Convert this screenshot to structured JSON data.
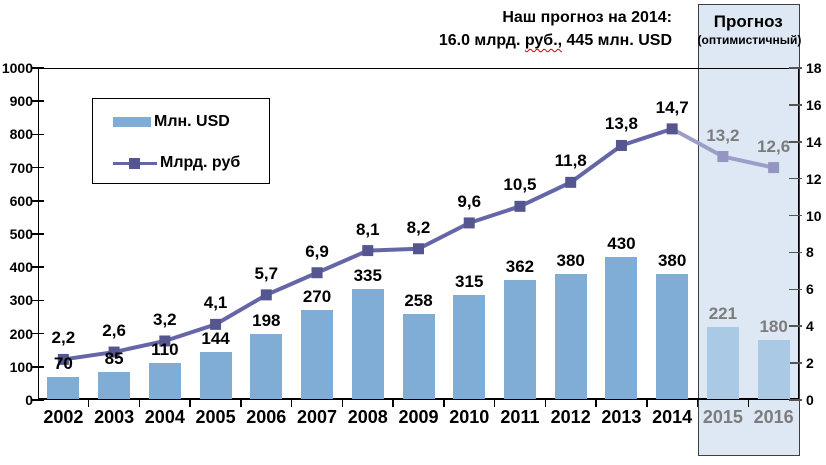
{
  "title": {
    "line1": "Наш прогноз на 2014:",
    "line2_prefix": "16.0 млрд. ",
    "line2_misspelled": "руб.,",
    "line2_suffix": " 445 млн. USD"
  },
  "forecast_box": {
    "title": "Прогноз",
    "subtitle": "(оптимистичный)"
  },
  "legend": {
    "bar_label": "Млн. USD",
    "line_label": "Млрд. руб"
  },
  "chart_data": {
    "type": "bar+line",
    "categories": [
      "2002",
      "2003",
      "2004",
      "2005",
      "2006",
      "2007",
      "2008",
      "2009",
      "2010",
      "2011",
      "2012",
      "2013",
      "2014",
      "2015",
      "2016"
    ],
    "series": [
      {
        "name": "Млн. USD",
        "type": "bar",
        "axis": "left",
        "values": [
          70,
          85,
          110,
          144,
          198,
          270,
          335,
          258,
          315,
          362,
          380,
          430,
          380,
          221,
          180
        ],
        "labels": [
          "70",
          "85",
          "110",
          "144",
          "198",
          "270",
          "335",
          "258",
          "315",
          "362",
          "380",
          "430",
          "380",
          "221",
          "180"
        ]
      },
      {
        "name": "Млрд. руб",
        "type": "line",
        "axis": "right",
        "values": [
          2.2,
          2.6,
          3.2,
          4.1,
          5.7,
          6.9,
          8.1,
          8.2,
          9.6,
          10.5,
          11.8,
          13.8,
          14.7,
          13.2,
          12.6
        ],
        "labels": [
          "2,2",
          "2,6",
          "3,2",
          "4,1",
          "5,7",
          "6,9",
          "8,1",
          "8,2",
          "9,6",
          "10,5",
          "11,8",
          "13,8",
          "14,7",
          "13,2",
          "12,6"
        ]
      }
    ],
    "left_axis": {
      "min": 0,
      "max": 1000,
      "step": 100,
      "ticks": [
        "0",
        "100",
        "200",
        "300",
        "400",
        "500",
        "600",
        "700",
        "800",
        "900",
        "1000"
      ]
    },
    "right_axis": {
      "min": 0,
      "max": 18,
      "step": 2,
      "ticks": [
        "0",
        "2",
        "4",
        "6",
        "8",
        "10",
        "12",
        "14",
        "16",
        "18"
      ]
    },
    "forecast_start_index": 13,
    "legend_position": "top-left-inside",
    "grid": false,
    "colors": {
      "bar": "#7fadd6",
      "bar_forecast": "#a9c9e5",
      "line": "#6566a7",
      "line_forecast": "#9c9dc9",
      "marker": "#55568f",
      "marker_forecast": "#9495c0",
      "forecast_bg": "#dde8f4",
      "label_forecast": "#7c7c7c",
      "label": "#000000"
    }
  }
}
